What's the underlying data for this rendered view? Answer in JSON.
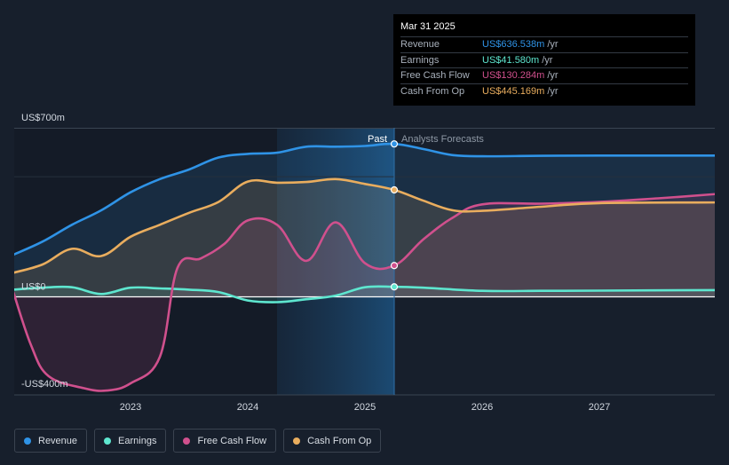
{
  "chart_data": {
    "type": "area",
    "y_unit": "US$",
    "ylim": [
      -400,
      700
    ],
    "y_ticks": [
      {
        "value": 700,
        "label": "US$700m"
      },
      {
        "value": 0,
        "label": "US$0"
      },
      {
        "value": -400,
        "label": "-US$400m"
      }
    ],
    "x_ticks": [
      {
        "value": 2023.0,
        "label": "2023"
      },
      {
        "value": 2024.0,
        "label": "2024"
      },
      {
        "value": 2025.0,
        "label": "2025"
      },
      {
        "value": 2026.0,
        "label": "2026"
      },
      {
        "value": 2027.0,
        "label": "2027"
      }
    ],
    "xlim": [
      2021.75,
      2028.0
    ],
    "past_label": "Past",
    "forecast_label": "Analysts Forecasts",
    "past_start": 2024.25,
    "divider_x": 2025.25,
    "series": [
      {
        "name": "Revenue",
        "color": "#2f93e6",
        "points": [
          [
            2022.0,
            175
          ],
          [
            2022.25,
            230
          ],
          [
            2022.5,
            300
          ],
          [
            2022.75,
            360
          ],
          [
            2023.0,
            435
          ],
          [
            2023.25,
            490
          ],
          [
            2023.5,
            530
          ],
          [
            2023.75,
            580
          ],
          [
            2024.0,
            595
          ],
          [
            2024.25,
            600
          ],
          [
            2024.5,
            625
          ],
          [
            2024.75,
            625
          ],
          [
            2025.0,
            628
          ],
          [
            2025.25,
            636.538
          ],
          [
            2025.5,
            615
          ],
          [
            2025.75,
            590
          ],
          [
            2026.0,
            585
          ],
          [
            2026.5,
            587
          ],
          [
            2027.0,
            588
          ],
          [
            2028.0,
            588
          ]
        ]
      },
      {
        "name": "Earnings",
        "color": "#5ee6cf",
        "points": [
          [
            2022.0,
            30
          ],
          [
            2022.25,
            38
          ],
          [
            2022.5,
            40
          ],
          [
            2022.75,
            12
          ],
          [
            2023.0,
            38
          ],
          [
            2023.25,
            35
          ],
          [
            2023.5,
            30
          ],
          [
            2023.75,
            20
          ],
          [
            2024.0,
            -15
          ],
          [
            2024.25,
            -22
          ],
          [
            2024.5,
            -10
          ],
          [
            2024.75,
            5
          ],
          [
            2025.0,
            40
          ],
          [
            2025.25,
            41.58
          ],
          [
            2025.5,
            38
          ],
          [
            2026.0,
            25
          ],
          [
            2026.5,
            25
          ],
          [
            2027.0,
            26
          ],
          [
            2028.0,
            28
          ]
        ]
      },
      {
        "name": "Free Cash Flow",
        "color": "#d0508d",
        "points": [
          [
            2022.0,
            20
          ],
          [
            2022.15,
            -200
          ],
          [
            2022.3,
            -330
          ],
          [
            2022.6,
            -380
          ],
          [
            2022.8,
            -390
          ],
          [
            2023.0,
            -360
          ],
          [
            2023.25,
            -250
          ],
          [
            2023.4,
            120
          ],
          [
            2023.6,
            160
          ],
          [
            2023.8,
            220
          ],
          [
            2024.0,
            318
          ],
          [
            2024.25,
            300
          ],
          [
            2024.5,
            150
          ],
          [
            2024.75,
            310
          ],
          [
            2025.0,
            140
          ],
          [
            2025.25,
            130.284
          ],
          [
            2025.5,
            240
          ],
          [
            2025.75,
            330
          ],
          [
            2026.0,
            385
          ],
          [
            2026.5,
            388
          ],
          [
            2027.0,
            395
          ],
          [
            2027.5,
            410
          ],
          [
            2028.0,
            428
          ]
        ]
      },
      {
        "name": "Cash From Op",
        "color": "#e9ad5e",
        "points": [
          [
            2022.0,
            100
          ],
          [
            2022.25,
            135
          ],
          [
            2022.5,
            200
          ],
          [
            2022.75,
            170
          ],
          [
            2023.0,
            250
          ],
          [
            2023.25,
            300
          ],
          [
            2023.5,
            350
          ],
          [
            2023.75,
            395
          ],
          [
            2024.0,
            480
          ],
          [
            2024.25,
            475
          ],
          [
            2024.5,
            478
          ],
          [
            2024.75,
            490
          ],
          [
            2025.0,
            470
          ],
          [
            2025.25,
            445.169
          ],
          [
            2025.5,
            400
          ],
          [
            2025.75,
            360
          ],
          [
            2026.0,
            358
          ],
          [
            2026.5,
            375
          ],
          [
            2027.0,
            390
          ],
          [
            2028.0,
            393
          ]
        ]
      }
    ],
    "highlight_date": "Mar 31 2025"
  },
  "tooltip": {
    "date": "Mar 31 2025",
    "rows": [
      {
        "label": "Revenue",
        "value": "US$636.538m",
        "unit": "/yr",
        "color": "#2f93e6"
      },
      {
        "label": "Earnings",
        "value": "US$41.580m",
        "unit": "/yr",
        "color": "#5ee6cf"
      },
      {
        "label": "Free Cash Flow",
        "value": "US$130.284m",
        "unit": "/yr",
        "color": "#d0508d"
      },
      {
        "label": "Cash From Op",
        "value": "US$445.169m",
        "unit": "/yr",
        "color": "#e9ad5e"
      }
    ]
  },
  "legend": {
    "items": [
      {
        "label": "Revenue",
        "color": "#2f93e6"
      },
      {
        "label": "Earnings",
        "color": "#5ee6cf"
      },
      {
        "label": "Free Cash Flow",
        "color": "#d0508d"
      },
      {
        "label": "Cash From Op",
        "color": "#e9ad5e"
      }
    ]
  }
}
